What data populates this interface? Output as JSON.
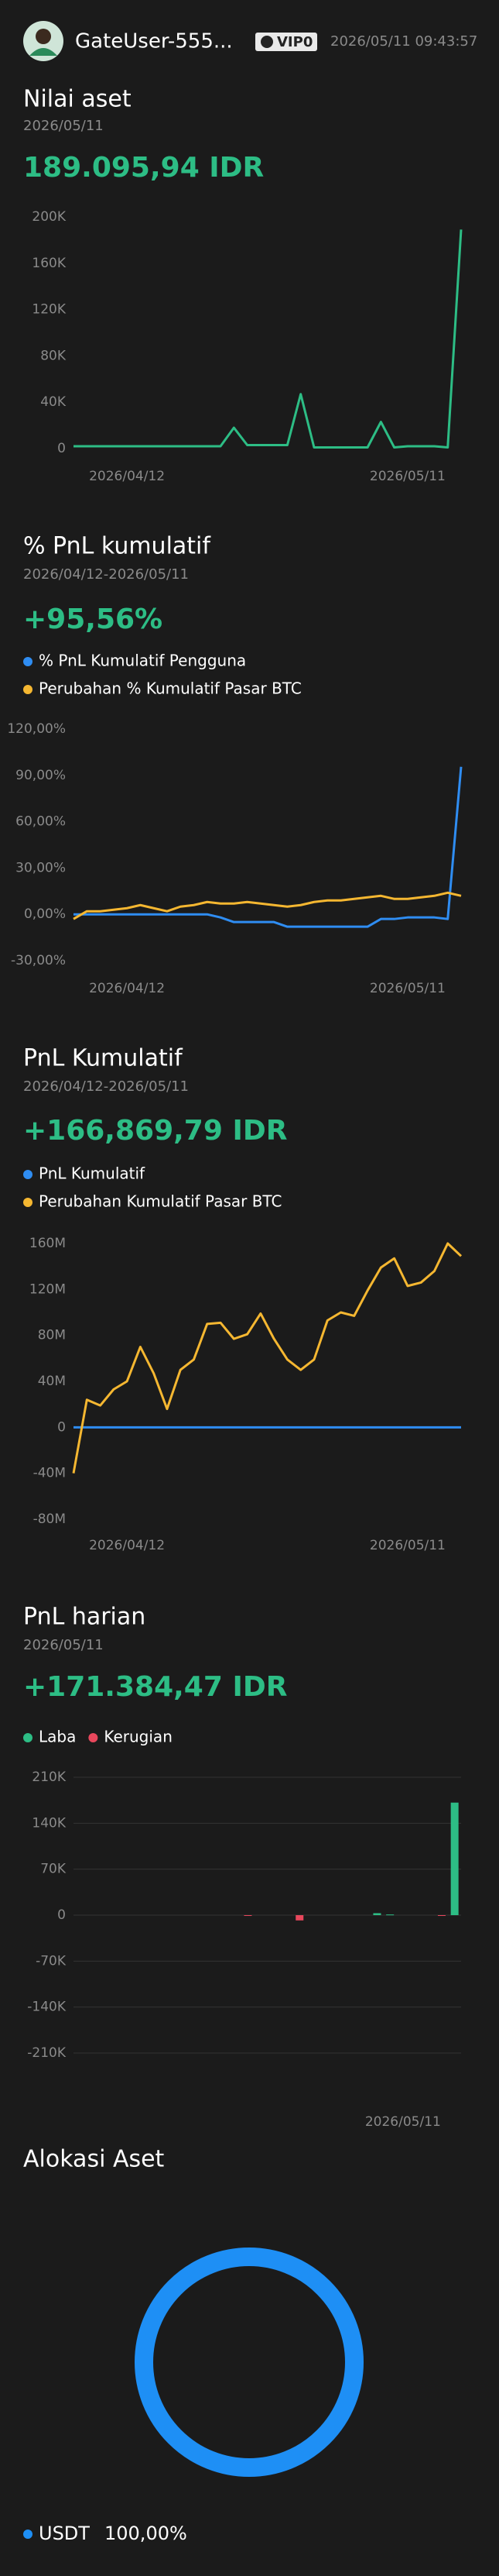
{
  "header": {
    "username": "GateUser-555...",
    "vip": "VIP0",
    "datetime": "2026/05/11 09:43:57"
  },
  "chart_data": [
    {
      "type": "line",
      "title": "Nilai aset",
      "subtitle": "2026/05/11",
      "headline": "189.095,94 IDR",
      "categories": [
        null,
        null,
        null,
        null,
        "2026/04/12",
        null,
        null,
        null,
        null,
        null,
        null,
        null,
        null,
        null,
        null,
        null,
        null,
        null,
        null,
        null,
        null,
        null,
        null,
        null,
        null,
        "2026/05/11",
        null,
        null,
        null,
        null
      ],
      "values": [
        2000,
        2000,
        2000,
        2000,
        2000,
        2000,
        2000,
        2000,
        2000,
        2000,
        2000,
        2000,
        18000,
        3000,
        3000,
        3000,
        3000,
        47000,
        1000,
        1000,
        1000,
        1000,
        1000,
        23000,
        1000,
        2000,
        2000,
        2000,
        1000,
        189095.94
      ],
      "color": "#2dbd85",
      "ylim": [
        0,
        200000
      ],
      "yticks": [
        0,
        {
          "value": 40000,
          "label": "40K"
        },
        {
          "value": 80000,
          "label": "80K"
        },
        {
          "value": 120000,
          "label": "120K"
        },
        {
          "value": 160000,
          "label": "160K"
        },
        {
          "value": 200000,
          "label": "200K"
        }
      ],
      "grid": false
    },
    {
      "type": "line",
      "title": "% PnL kumulatif",
      "subtitle": "2026/04/12-2026/05/11",
      "headline": "+95,56%",
      "categories": [
        null,
        null,
        null,
        null,
        "2026/04/12",
        null,
        null,
        null,
        null,
        null,
        null,
        null,
        null,
        null,
        null,
        null,
        null,
        null,
        null,
        null,
        null,
        null,
        null,
        null,
        null,
        "2026/05/11",
        null,
        null,
        null,
        null
      ],
      "series": [
        {
          "name": "% PnL Kumulatif Pengguna",
          "color": "#2f8df2",
          "values": [
            0,
            0,
            0,
            0,
            0,
            0,
            0,
            0,
            0,
            0,
            0,
            -2,
            -5,
            -5,
            -5,
            -5,
            -8,
            -8,
            -8,
            -8,
            -8,
            -8,
            -8,
            -3,
            -3,
            -2,
            -2,
            -2,
            -3,
            95.56
          ]
        },
        {
          "name": "Perubahan % Kumulatif Pasar BTC",
          "color": "#f5b731",
          "values": [
            -3,
            2,
            2,
            3,
            4,
            6,
            4,
            2,
            5,
            6,
            8,
            7,
            7,
            8,
            7,
            6,
            5,
            6,
            8,
            9,
            9,
            10,
            11,
            12,
            10,
            10,
            11,
            12,
            14,
            12
          ]
        }
      ],
      "ylim": [
        -30,
        120
      ],
      "yticks": [
        {
          "value": -30,
          "label": "-30,00%"
        },
        {
          "value": 0,
          "label": "0,00%"
        },
        {
          "value": 30,
          "label": "30,00%"
        },
        {
          "value": 60,
          "label": "60,00%"
        },
        {
          "value": 90,
          "label": "90,00%"
        },
        {
          "value": 120,
          "label": "120,00%"
        }
      ],
      "grid": false
    },
    {
      "type": "line",
      "title": "PnL Kumulatif",
      "subtitle": "2026/04/12-2026/05/11",
      "headline": "+166,869,79 IDR",
      "categories": [
        null,
        null,
        null,
        null,
        "2026/04/12",
        null,
        null,
        null,
        null,
        null,
        null,
        null,
        null,
        null,
        null,
        null,
        null,
        null,
        null,
        null,
        null,
        null,
        null,
        null,
        null,
        "2026/05/11",
        null,
        null,
        null,
        null
      ],
      "series": [
        {
          "name": "PnL Kumulatif",
          "color": "#2f8df2",
          "values": [
            0,
            0,
            0,
            0,
            0,
            0,
            0,
            0,
            0,
            0,
            0,
            0,
            0,
            0,
            0,
            0,
            0,
            0,
            0,
            0,
            0,
            0,
            0,
            0,
            0,
            0,
            0,
            0,
            0,
            0
          ]
        },
        {
          "name": "Perubahan Kumulatif Pasar BTC",
          "color": "#f5b731",
          "values": [
            -40000000,
            24000000,
            19000000,
            33000000,
            40000000,
            70000000,
            47000000,
            16000000,
            50000000,
            59000000,
            90000000,
            91000000,
            77000000,
            81000000,
            99000000,
            77000000,
            59000000,
            50000000,
            59000000,
            93000000,
            100000000,
            97000000,
            119000000,
            139000000,
            147000000,
            123000000,
            126000000,
            136000000,
            160000000,
            149000000
          ]
        }
      ],
      "ylim": [
        -80000000,
        160000000
      ],
      "yticks": [
        {
          "value": -80000000,
          "label": "-80M"
        },
        {
          "value": -40000000,
          "label": "-40M"
        },
        0,
        {
          "value": 40000000,
          "label": "40M"
        },
        {
          "value": 80000000,
          "label": "80M"
        },
        {
          "value": 120000000,
          "label": "120M"
        },
        {
          "value": 160000000,
          "label": "160M"
        }
      ],
      "grid": false
    },
    {
      "type": "bar",
      "title": "PnL harian",
      "subtitle": "2026/05/11",
      "headline": "+171.384,47 IDR",
      "categories": [
        null,
        null,
        null,
        null,
        null,
        null,
        null,
        null,
        null,
        null,
        null,
        null,
        null,
        null,
        null,
        null,
        null,
        null,
        null,
        null,
        null,
        null,
        null,
        null,
        null,
        "2026/05/11",
        null,
        null,
        null,
        null
      ],
      "series": [
        {
          "name": "Laba",
          "color": "#2dbd85",
          "values": [
            null,
            null,
            null,
            null,
            null,
            null,
            null,
            null,
            null,
            null,
            null,
            null,
            null,
            null,
            null,
            null,
            null,
            null,
            null,
            null,
            null,
            null,
            null,
            3000,
            1000,
            null,
            null,
            null,
            null,
            171384.47
          ]
        },
        {
          "name": "Kerugian",
          "color": "#e8475c",
          "values": [
            null,
            null,
            null,
            null,
            null,
            null,
            null,
            null,
            null,
            null,
            null,
            null,
            null,
            -1000,
            null,
            null,
            null,
            -8000,
            null,
            null,
            null,
            null,
            null,
            null,
            null,
            null,
            null,
            null,
            -500,
            null
          ]
        }
      ],
      "ylim": [
        -210000,
        210000
      ],
      "yticks": [
        {
          "value": -210000,
          "label": "-210K"
        },
        {
          "value": -140000,
          "label": "-140K"
        },
        {
          "value": -70000,
          "label": "-70K"
        },
        0,
        {
          "value": 70000,
          "label": "70K"
        },
        {
          "value": 140000,
          "label": "140K"
        },
        {
          "value": 210000,
          "label": "210K"
        }
      ],
      "grid": true
    },
    {
      "type": "pie",
      "title": "Alokasi Aset",
      "categories": [
        "USDT"
      ],
      "values": [
        100
      ],
      "value_labels": [
        "100,00%"
      ],
      "colors": [
        "#1e8ff5"
      ]
    }
  ]
}
